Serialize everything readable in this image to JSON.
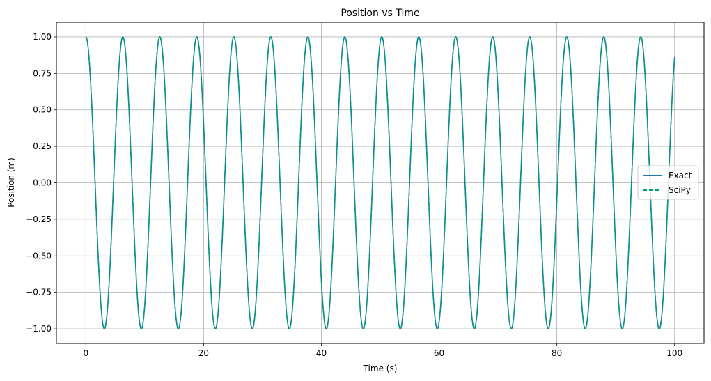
{
  "chart_data": {
    "type": "line",
    "title": "Position vs Time",
    "xlabel": "Time (s)",
    "ylabel": "Position (m)",
    "xlim": [
      -5,
      105
    ],
    "ylim": [
      -1.1,
      1.1
    ],
    "xticks": [
      0,
      20,
      40,
      60,
      80,
      100
    ],
    "xtick_labels": [
      "0",
      "20",
      "40",
      "60",
      "80",
      "100"
    ],
    "yticks": [
      -1.0,
      -0.75,
      -0.5,
      -0.25,
      0.0,
      0.25,
      0.5,
      0.75,
      1.0
    ],
    "ytick_labels": [
      "−1.00",
      "−0.75",
      "−0.50",
      "−0.25",
      "0.00",
      "0.25",
      "0.50",
      "0.75",
      "1.00"
    ],
    "grid": true,
    "legend_position": "center-right",
    "x_range": [
      0,
      100
    ],
    "series": [
      {
        "name": "Exact",
        "formula": "cos(t)",
        "style": "solid",
        "color": "#1f77b4"
      },
      {
        "name": "SciPy",
        "formula": "cos(t)",
        "style": "dashed",
        "color": "#009e73"
      }
    ]
  }
}
